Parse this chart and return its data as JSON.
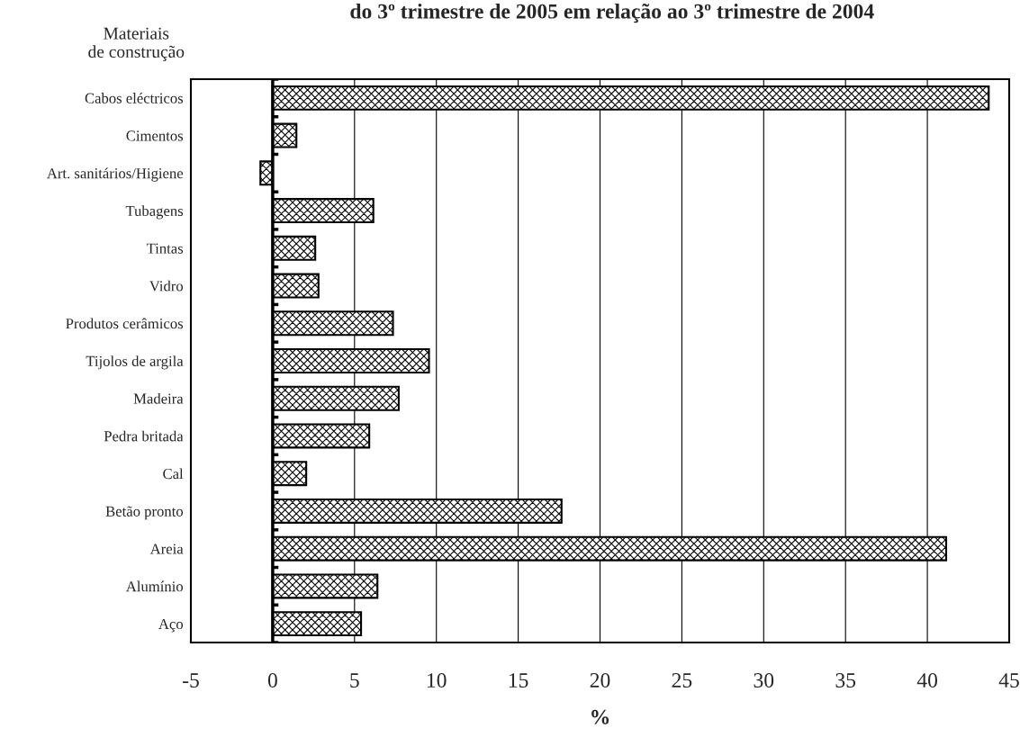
{
  "chart_data": {
    "type": "bar",
    "orientation": "horizontal",
    "title": "do 3º trimestre de 2005 em relação ao 3º trimestre de 2004",
    "ylabel": "Materiais\nde construção",
    "xlabel": "%",
    "categories": [
      "Cabos eléctricos",
      "Cimentos",
      "Art. sanitários/Higiene",
      "Tubagens",
      "Tintas",
      "Vidro",
      "Produtos cerâmicos",
      "Tijolos de argila",
      "Madeira",
      "Pedra britada",
      "Cal",
      "Betão pronto",
      "Areia",
      "Alumínio",
      "Aço"
    ],
    "values": [
      43.75,
      1.45,
      -0.75,
      6.15,
      2.6,
      2.8,
      7.35,
      9.55,
      7.7,
      5.9,
      2.05,
      17.65,
      41.15,
      6.4,
      5.4
    ],
    "color": "#000000",
    "xlim": [
      -5,
      45
    ],
    "xticks": [
      -5,
      0,
      5,
      10,
      15,
      20,
      25,
      30,
      35,
      40,
      45
    ],
    "grid": "x",
    "legend": false
  }
}
